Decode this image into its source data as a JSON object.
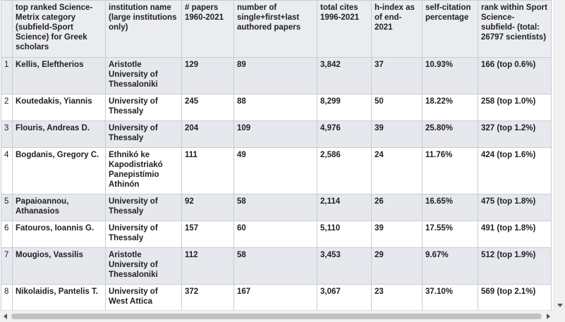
{
  "table": {
    "headers": [
      "",
      "top ranked Science-Metrix category (subfield-Sport Science) for Greek scholars",
      "institution name (large institutions only)",
      "# papers 1960-2021",
      "number of single+first+last authored papers",
      "total cites 1996-2021",
      "h-index as of end-2021",
      "self-citation percentage",
      "rank within Sport Science-subfield- (total: 26797 scientists)"
    ],
    "rows": [
      [
        "1",
        "Kellis, Eleftherios",
        "Aristotle University of Thessaloniki",
        "129",
        "89",
        "3,842",
        "37",
        "10.93%",
        "166 (top 0.6%)"
      ],
      [
        "2",
        "Koutedakis, Yiannis",
        "University of Thessaly",
        "245",
        "88",
        "8,299",
        "50",
        "18.22%",
        "258 (top 1.0%)"
      ],
      [
        "3",
        "Flouris, Andreas D.",
        "University of Thessaly",
        "204",
        "109",
        "4,976",
        "39",
        "25.80%",
        "327 (top 1.2%)"
      ],
      [
        "4",
        "Bogdanis, Gregory C.",
        "Ethnikó ke Kapodistriakó Panepistímio Athinón",
        "111",
        "49",
        "2,586",
        "24",
        "11.76%",
        "424 (top 1.6%)"
      ],
      [
        "5",
        "Papaioannou, Athanasios",
        "University of Thessaly",
        "92",
        "58",
        "2,114",
        "26",
        "16.65%",
        "475 (top 1.8%)"
      ],
      [
        "6",
        "Fatouros, Ioannis G.",
        "University of Thessaly",
        "157",
        "60",
        "5,110",
        "39",
        "17.55%",
        "491 (top 1.8%)"
      ],
      [
        "7",
        "Mougios, Vassilis",
        "Aristotle University of Thessaloniki",
        "112",
        "58",
        "3,453",
        "29",
        "9.67%",
        "512 (top 1.9%)"
      ],
      [
        "8",
        "Nikolaidis, Pantelis T.",
        "University of West Attica",
        "372",
        "167",
        "3,067",
        "23",
        "37.10%",
        "569 (top 2.1%)"
      ]
    ]
  }
}
